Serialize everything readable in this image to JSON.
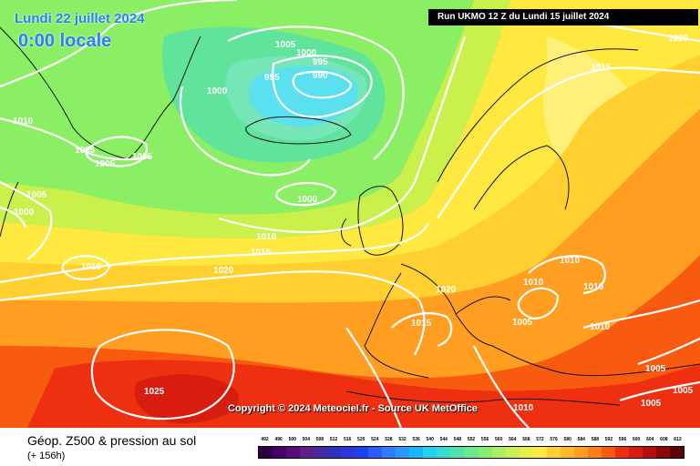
{
  "header": {
    "date": "Lundi 22 juillet 2024",
    "time": "0:00 locale",
    "run": "Run UKMO 12 Z du Lundi 15 juillet 2024"
  },
  "copyright": "Copyright © 2024 Meteociel.fr - Source UK MetOffice",
  "footer": {
    "title": "Géop. Z500 & pression au sol",
    "subtitle": "(+ 156h)"
  },
  "isobars": [
    "1020",
    "1015",
    "1005",
    "1000",
    "995",
    "990",
    "995",
    "1000",
    "1010",
    "1005",
    "1005",
    "1005",
    "1005",
    "1000",
    "1000",
    "1010",
    "1015",
    "1010",
    "1020",
    "1020",
    "1015",
    "1010",
    "1010",
    "1010",
    "1005",
    "1010",
    "1005",
    "1005",
    "1005",
    "1010",
    "1025"
  ],
  "legend": {
    "values": [
      "492",
      "496",
      "500",
      "504",
      "508",
      "512",
      "516",
      "520",
      "524",
      "528",
      "532",
      "536",
      "540",
      "544",
      "548",
      "552",
      "556",
      "560",
      "564",
      "568",
      "572",
      "576",
      "580",
      "584",
      "588",
      "592",
      "596",
      "600",
      "604",
      "608",
      "612"
    ],
    "colors": [
      "#2a0040",
      "#46006a",
      "#5a0a7a",
      "#5e1f8a",
      "#4a2aa0",
      "#3030c0",
      "#2d36d8",
      "#1f40f0",
      "#2c5cff",
      "#2e7cff",
      "#2898ff",
      "#18b8ff",
      "#22d2f0",
      "#36dcd0",
      "#52e0ac",
      "#6ce890",
      "#88ee70",
      "#a8f060",
      "#c8f050",
      "#e8ee48",
      "#ffe840",
      "#ffd030",
      "#ffb828",
      "#ff9e20",
      "#ff7e18",
      "#f85a10",
      "#ee3010",
      "#d81c10",
      "#b80e0e",
      "#8c0808",
      "#5c0404"
    ]
  }
}
